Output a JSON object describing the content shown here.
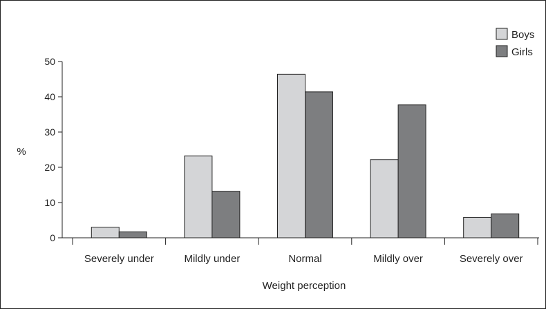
{
  "chart_data": {
    "type": "bar",
    "categories": [
      "Severely under",
      "Mildly under",
      "Normal",
      "Mildly over",
      "Severely over"
    ],
    "series": [
      {
        "name": "Boys",
        "color": "#d4d5d7",
        "values": [
          3,
          23.2,
          46.4,
          22.2,
          5.8
        ]
      },
      {
        "name": "Girls",
        "color": "#7d7e80",
        "values": [
          1.7,
          13.2,
          41.4,
          37.7,
          6.8
        ]
      }
    ],
    "xlabel": "Weight perception",
    "ylabel": "%",
    "ylim": [
      0,
      50
    ],
    "yticks": [
      "0",
      "10",
      "20",
      "30",
      "40",
      "50"
    ],
    "grid": false,
    "legend_position": "top-right"
  }
}
